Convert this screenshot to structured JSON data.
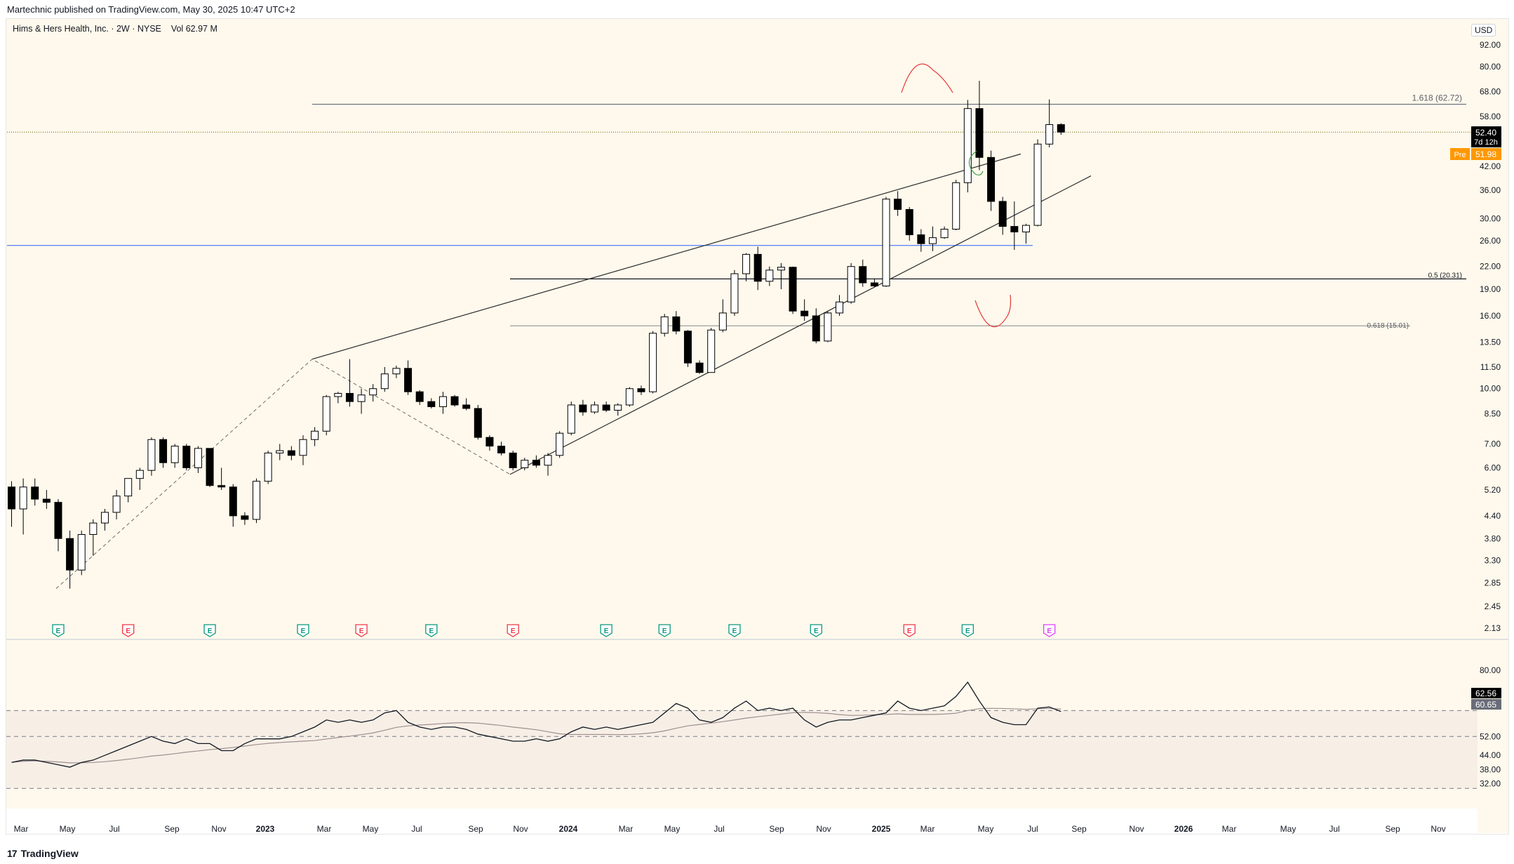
{
  "publisher": "Martechnic published on TradingView.com, May 30, 2025 10:47 UTC+2",
  "symbol": {
    "name": "Hims & Hers Health, Inc.",
    "interval": "2W",
    "exchange": "NYSE",
    "volume_label": "Vol",
    "volume": "62.97 M"
  },
  "currency": "USD",
  "brand": "TradingView",
  "colors": {
    "background": "#fef9ec",
    "up_candle": "#ffffff",
    "down_candle": "#000000",
    "blue_line": "#2962ff",
    "red_annotation": "#e53935",
    "green_annotation": "#43a047",
    "earnings_green": "#089981",
    "earnings_red": "#f23645",
    "earnings_future": "#e040fb",
    "pre_market": "#ff9800"
  },
  "chart_data": [
    {
      "type": "candlestick",
      "y_scale": "log",
      "ylim": [
        2.13,
        92.0
      ],
      "y_ticks": [
        "92.00",
        "80.00",
        "68.00",
        "58.00",
        "42.00",
        "36.00",
        "30.00",
        "26.00",
        "22.00",
        "19.00",
        "16.00",
        "13.50",
        "11.50",
        "10.00",
        "8.50",
        "7.00",
        "6.00",
        "5.20",
        "4.40",
        "3.80",
        "3.30",
        "2.85",
        "2.45",
        "2.13"
      ],
      "x_ticks": [
        "Mar",
        "May",
        "Jul",
        "Sep",
        "Nov",
        "2023",
        "Mar",
        "May",
        "Jul",
        "Sep",
        "Nov",
        "2024",
        "Mar",
        "May",
        "Jul",
        "Sep",
        "Nov",
        "2025",
        "Mar",
        "May",
        "Jul",
        "Sep",
        "Nov",
        "2026",
        "Mar",
        "May",
        "Jul",
        "Sep",
        "Nov"
      ],
      "candles": [
        {
          "o": 5.3,
          "h": 5.5,
          "l": 4.1,
          "c": 4.6
        },
        {
          "o": 4.6,
          "h": 5.6,
          "l": 3.9,
          "c": 5.3
        },
        {
          "o": 5.3,
          "h": 5.6,
          "l": 4.7,
          "c": 4.9
        },
        {
          "o": 4.9,
          "h": 5.2,
          "l": 4.6,
          "c": 4.8
        },
        {
          "o": 4.8,
          "h": 4.9,
          "l": 3.5,
          "c": 3.8
        },
        {
          "o": 3.8,
          "h": 4.0,
          "l": 2.75,
          "c": 3.1
        },
        {
          "o": 3.1,
          "h": 4.0,
          "l": 3.0,
          "c": 3.9
        },
        {
          "o": 3.9,
          "h": 4.3,
          "l": 3.4,
          "c": 4.2
        },
        {
          "o": 4.2,
          "h": 4.6,
          "l": 4.0,
          "c": 4.5
        },
        {
          "o": 4.5,
          "h": 5.2,
          "l": 4.3,
          "c": 5.0
        },
        {
          "o": 5.0,
          "h": 5.6,
          "l": 4.8,
          "c": 5.6
        },
        {
          "o": 5.6,
          "h": 6.0,
          "l": 5.2,
          "c": 5.9
        },
        {
          "o": 5.9,
          "h": 7.3,
          "l": 5.7,
          "c": 7.2
        },
        {
          "o": 7.2,
          "h": 7.3,
          "l": 6.0,
          "c": 6.2
        },
        {
          "o": 6.2,
          "h": 7.0,
          "l": 6.0,
          "c": 6.9
        },
        {
          "o": 6.9,
          "h": 7.0,
          "l": 5.9,
          "c": 6.0
        },
        {
          "o": 6.0,
          "h": 6.9,
          "l": 5.8,
          "c": 6.8
        },
        {
          "o": 6.8,
          "h": 6.8,
          "l": 5.3,
          "c": 5.35
        },
        {
          "o": 5.35,
          "h": 6.0,
          "l": 5.2,
          "c": 5.3
        },
        {
          "o": 5.3,
          "h": 5.4,
          "l": 4.1,
          "c": 4.4
        },
        {
          "o": 4.4,
          "h": 4.5,
          "l": 4.15,
          "c": 4.3
        },
        {
          "o": 4.3,
          "h": 5.6,
          "l": 4.2,
          "c": 5.5
        },
        {
          "o": 5.5,
          "h": 6.7,
          "l": 5.4,
          "c": 6.6
        },
        {
          "o": 6.6,
          "h": 7.0,
          "l": 6.3,
          "c": 6.7
        },
        {
          "o": 6.7,
          "h": 6.9,
          "l": 6.3,
          "c": 6.5
        },
        {
          "o": 6.5,
          "h": 7.4,
          "l": 6.1,
          "c": 7.2
        },
        {
          "o": 7.2,
          "h": 7.8,
          "l": 6.9,
          "c": 7.6
        },
        {
          "o": 7.6,
          "h": 9.6,
          "l": 7.4,
          "c": 9.5
        },
        {
          "o": 9.5,
          "h": 9.8,
          "l": 9.1,
          "c": 9.7
        },
        {
          "o": 9.7,
          "h": 12.1,
          "l": 8.9,
          "c": 9.2
        },
        {
          "o": 9.2,
          "h": 10.0,
          "l": 8.5,
          "c": 9.6
        },
        {
          "o": 9.6,
          "h": 10.3,
          "l": 9.2,
          "c": 10.0
        },
        {
          "o": 10.0,
          "h": 11.5,
          "l": 9.8,
          "c": 11.0
        },
        {
          "o": 11.0,
          "h": 11.6,
          "l": 10.7,
          "c": 11.4
        },
        {
          "o": 11.4,
          "h": 12.0,
          "l": 9.6,
          "c": 9.8
        },
        {
          "o": 9.8,
          "h": 9.9,
          "l": 9.0,
          "c": 9.2
        },
        {
          "o": 9.2,
          "h": 9.4,
          "l": 8.8,
          "c": 8.9
        },
        {
          "o": 8.9,
          "h": 9.8,
          "l": 8.5,
          "c": 9.5
        },
        {
          "o": 9.5,
          "h": 9.6,
          "l": 8.9,
          "c": 9.0
        },
        {
          "o": 9.0,
          "h": 9.4,
          "l": 8.7,
          "c": 8.8
        },
        {
          "o": 8.8,
          "h": 9.0,
          "l": 7.2,
          "c": 7.3
        },
        {
          "o": 7.3,
          "h": 7.4,
          "l": 6.7,
          "c": 6.9
        },
        {
          "o": 6.9,
          "h": 7.1,
          "l": 6.5,
          "c": 6.6
        },
        {
          "o": 6.6,
          "h": 6.7,
          "l": 5.9,
          "c": 6.0
        },
        {
          "o": 6.0,
          "h": 6.4,
          "l": 5.9,
          "c": 6.3
        },
        {
          "o": 6.3,
          "h": 6.5,
          "l": 6.0,
          "c": 6.1
        },
        {
          "o": 6.1,
          "h": 6.6,
          "l": 5.7,
          "c": 6.5
        },
        {
          "o": 6.5,
          "h": 7.6,
          "l": 6.4,
          "c": 7.5
        },
        {
          "o": 7.5,
          "h": 9.2,
          "l": 7.4,
          "c": 9.0
        },
        {
          "o": 9.0,
          "h": 9.3,
          "l": 8.4,
          "c": 8.6
        },
        {
          "o": 8.6,
          "h": 9.2,
          "l": 8.5,
          "c": 9.0
        },
        {
          "o": 9.0,
          "h": 9.2,
          "l": 8.6,
          "c": 8.7
        },
        {
          "o": 8.7,
          "h": 9.1,
          "l": 8.4,
          "c": 9.0
        },
        {
          "o": 9.0,
          "h": 10.1,
          "l": 8.9,
          "c": 10.0
        },
        {
          "o": 10.0,
          "h": 10.2,
          "l": 9.6,
          "c": 9.8
        },
        {
          "o": 9.8,
          "h": 14.5,
          "l": 9.7,
          "c": 14.3
        },
        {
          "o": 14.3,
          "h": 16.2,
          "l": 14.0,
          "c": 15.9
        },
        {
          "o": 15.9,
          "h": 16.5,
          "l": 14.2,
          "c": 14.5
        },
        {
          "o": 14.5,
          "h": 14.6,
          "l": 11.5,
          "c": 11.8
        },
        {
          "o": 11.8,
          "h": 12.0,
          "l": 11.0,
          "c": 11.1
        },
        {
          "o": 11.1,
          "h": 14.8,
          "l": 11.1,
          "c": 14.6
        },
        {
          "o": 14.6,
          "h": 17.8,
          "l": 14.4,
          "c": 16.3
        },
        {
          "o": 16.3,
          "h": 21.5,
          "l": 16.0,
          "c": 21.0
        },
        {
          "o": 21.0,
          "h": 24.0,
          "l": 20.0,
          "c": 23.8
        },
        {
          "o": 23.8,
          "h": 25.0,
          "l": 18.9,
          "c": 20.0
        },
        {
          "o": 20.0,
          "h": 22.0,
          "l": 19.4,
          "c": 21.5
        },
        {
          "o": 21.5,
          "h": 22.5,
          "l": 19.0,
          "c": 21.9
        },
        {
          "o": 21.9,
          "h": 22.0,
          "l": 16.2,
          "c": 16.5
        },
        {
          "o": 16.5,
          "h": 17.8,
          "l": 15.5,
          "c": 16.0
        },
        {
          "o": 16.0,
          "h": 16.8,
          "l": 13.4,
          "c": 13.6
        },
        {
          "o": 13.6,
          "h": 16.5,
          "l": 13.5,
          "c": 16.3
        },
        {
          "o": 16.3,
          "h": 18.3,
          "l": 16.0,
          "c": 17.5
        },
        {
          "o": 17.5,
          "h": 22.5,
          "l": 17.3,
          "c": 22.0
        },
        {
          "o": 22.0,
          "h": 23.0,
          "l": 19.3,
          "c": 19.8
        },
        {
          "o": 19.8,
          "h": 20.3,
          "l": 19.3,
          "c": 19.4
        },
        {
          "o": 19.4,
          "h": 34.5,
          "l": 19.3,
          "c": 34.0
        },
        {
          "o": 34.0,
          "h": 35.8,
          "l": 30.5,
          "c": 31.8
        },
        {
          "o": 31.8,
          "h": 32.3,
          "l": 26.0,
          "c": 27.0
        },
        {
          "o": 27.0,
          "h": 28.0,
          "l": 24.2,
          "c": 25.5
        },
        {
          "o": 25.5,
          "h": 28.5,
          "l": 24.3,
          "c": 26.5
        },
        {
          "o": 26.5,
          "h": 28.5,
          "l": 26.3,
          "c": 28.0
        },
        {
          "o": 28.0,
          "h": 38.5,
          "l": 27.8,
          "c": 37.8
        },
        {
          "o": 37.8,
          "h": 64.5,
          "l": 35.5,
          "c": 61.0
        },
        {
          "o": 61.0,
          "h": 72.98,
          "l": 41.0,
          "c": 44.5
        },
        {
          "o": 44.5,
          "h": 46.5,
          "l": 31.5,
          "c": 33.5
        },
        {
          "o": 33.5,
          "h": 34.5,
          "l": 27.0,
          "c": 28.5
        },
        {
          "o": 28.5,
          "h": 33.5,
          "l": 24.5,
          "c": 27.5
        },
        {
          "o": 27.5,
          "h": 29.0,
          "l": 25.5,
          "c": 28.7
        },
        {
          "o": 28.7,
          "h": 50.0,
          "l": 28.5,
          "c": 48.5
        },
        {
          "o": 48.5,
          "h": 64.7,
          "l": 47.5,
          "c": 55.0
        },
        {
          "o": 55.0,
          "h": 55.5,
          "l": 51.5,
          "c": 52.4
        }
      ],
      "last_price": "52.40",
      "countdown": "7d 12h",
      "pre_label": "Pre",
      "pre_price": "51.98",
      "fib_labels": [
        "1.618 (62.72)",
        "0.5 (20.31)",
        "0.618 (15.01)"
      ],
      "fib_levels": [
        62.72,
        20.31,
        15.01
      ],
      "horizontal_blue": 25.2,
      "earnings": [
        {
          "idx": 4,
          "kind": "green"
        },
        {
          "idx": 10,
          "kind": "red"
        },
        {
          "idx": 17,
          "kind": "green"
        },
        {
          "idx": 25,
          "kind": "green"
        },
        {
          "idx": 30,
          "kind": "red"
        },
        {
          "idx": 36,
          "kind": "green"
        },
        {
          "idx": 43,
          "kind": "red"
        },
        {
          "idx": 51,
          "kind": "green"
        },
        {
          "idx": 56,
          "kind": "green"
        },
        {
          "idx": 62,
          "kind": "green"
        },
        {
          "idx": 69,
          "kind": "green"
        },
        {
          "idx": 77,
          "kind": "red"
        },
        {
          "idx": 82,
          "kind": "green"
        },
        {
          "idx": 89,
          "kind": "future"
        }
      ],
      "earnings_label": "E"
    },
    {
      "type": "line",
      "name": "RSI",
      "ylim": [
        28,
        86
      ],
      "y_ticks": [
        "80.00",
        "62.56",
        "60.65",
        "52.00",
        "44.00",
        "38.00",
        "32.00"
      ],
      "bands": [
        63,
        52,
        30
      ],
      "rsi": [
        41,
        42,
        42,
        41,
        40,
        39,
        41,
        42,
        44,
        46,
        48,
        50,
        52,
        50,
        49,
        51,
        49,
        49,
        46,
        46,
        49,
        51,
        51,
        51,
        52,
        54,
        56,
        59,
        58,
        59,
        58,
        59,
        62,
        63,
        58,
        56,
        55,
        56,
        56,
        55,
        53,
        52,
        51,
        50,
        50,
        51,
        50,
        51,
        54,
        56,
        55,
        56,
        55,
        56,
        57,
        58,
        62,
        66,
        64,
        59,
        58,
        60,
        64,
        67,
        63,
        64,
        63,
        64,
        59,
        56,
        58,
        59,
        59,
        60,
        61,
        62,
        67,
        64,
        63,
        64,
        65,
        69,
        75,
        67,
        60,
        58,
        57,
        57,
        64,
        64.5,
        62.56
      ],
      "signal_label": "60.65",
      "rsi_label": "62.56"
    }
  ]
}
